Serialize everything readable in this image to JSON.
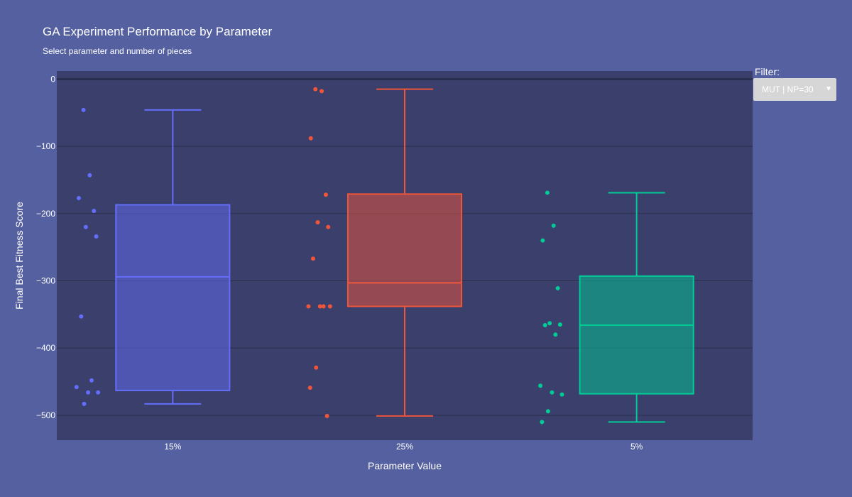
{
  "chart_data": {
    "type": "box",
    "title": "GA Experiment Performance by Parameter",
    "subtitle": "Select parameter and number of pieces",
    "xlabel": "Parameter Value",
    "ylabel": "Final Best Fitness Score",
    "ylim": [
      -537,
      12
    ],
    "yticks": [
      0,
      -100,
      -200,
      -300,
      -400,
      -500
    ],
    "grid": true,
    "categories": [
      "15%",
      "25%",
      "5%"
    ],
    "series": [
      {
        "category": "15%",
        "color": "#636efa",
        "box": {
          "lowerfence": -483,
          "q1": -463,
          "median": -294,
          "q3": -187,
          "upperfence": -46
        },
        "points": [
          -46,
          -143,
          -177,
          -196,
          -220,
          -234,
          -353,
          -448,
          -458,
          -466,
          -466,
          -483
        ]
      },
      {
        "category": "25%",
        "color": "#ef553b",
        "box": {
          "lowerfence": -501,
          "q1": -338,
          "median": -303,
          "q3": -171,
          "upperfence": -15
        },
        "points": [
          -15,
          -18,
          -88,
          -172,
          -213,
          -220,
          -267,
          -338,
          -338,
          -338,
          -338,
          -429,
          -459,
          -501
        ]
      },
      {
        "category": "5%",
        "color": "#00cc96",
        "box": {
          "lowerfence": -510,
          "q1": -468,
          "median": -366,
          "q3": -293,
          "upperfence": -169
        },
        "points": [
          -169,
          -218,
          -240,
          -311,
          -363,
          -365,
          -366,
          -380,
          -456,
          -466,
          -469,
          -494,
          -510
        ]
      }
    ]
  },
  "filter": {
    "label": "Filter:",
    "selected": "MUT | NP=30",
    "caret": "▼"
  }
}
